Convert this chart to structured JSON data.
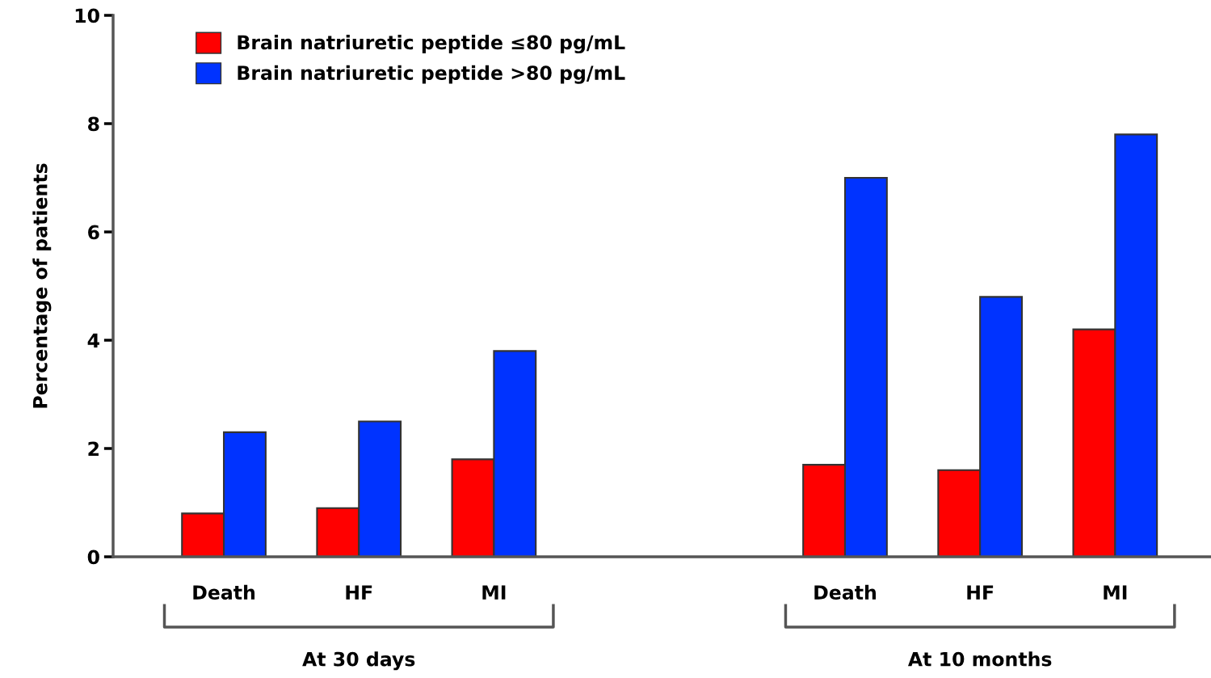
{
  "chart_data": {
    "type": "bar",
    "ylabel": "Percentage of patients",
    "categories": [
      "Death",
      "HF",
      "MI",
      "Death",
      "HF",
      "MI"
    ],
    "series": [
      {
        "name": "Brain natriuretic peptide ≤80 pg/mL",
        "color": "#ff0000",
        "values": [
          0.8,
          0.9,
          1.8,
          1.7,
          1.6,
          4.2
        ]
      },
      {
        "name": "Brain natriuretic peptide >80 pg/mL",
        "color": "#0033ff",
        "values": [
          2.3,
          2.5,
          3.8,
          7.0,
          4.8,
          7.8
        ]
      }
    ],
    "annotations": [
      "At 30 days",
      "At 10 months"
    ],
    "ylim": [
      0,
      10
    ],
    "yticks": [
      0,
      2,
      4,
      6,
      8,
      10
    ],
    "grid": false,
    "legend": "top left"
  }
}
